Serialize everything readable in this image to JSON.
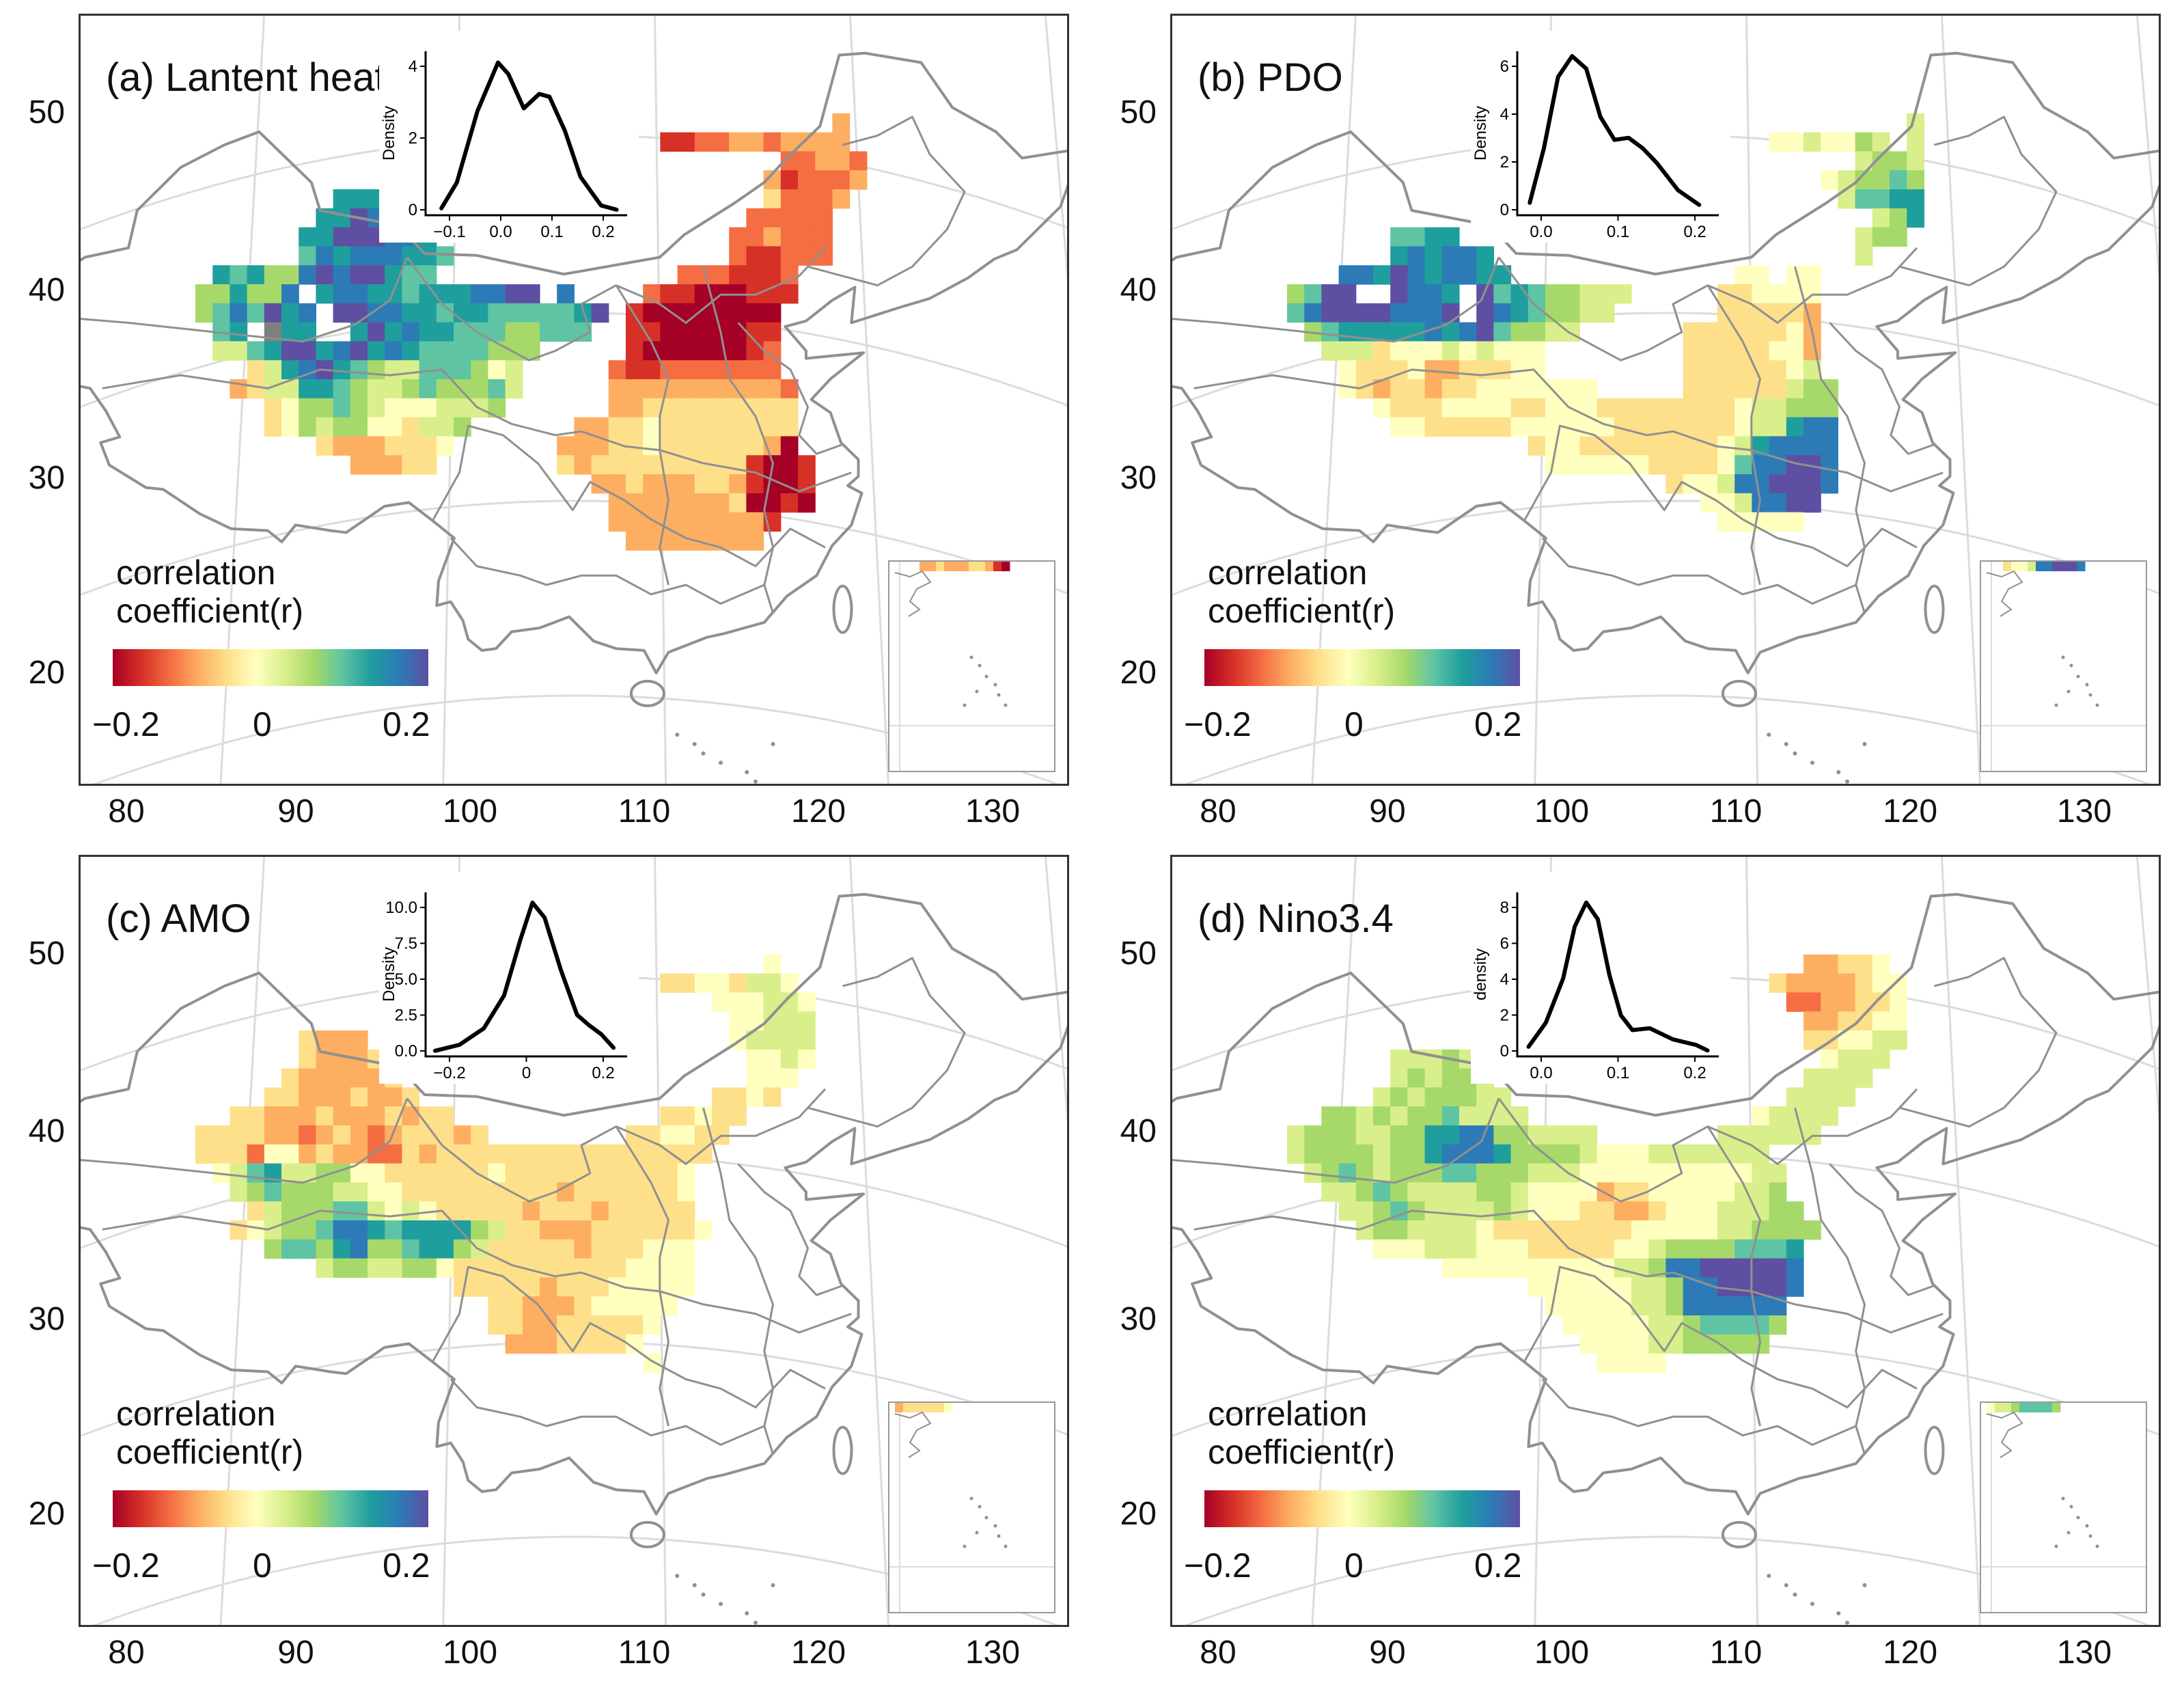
{
  "colors": {
    "scale": [
      "#a50026",
      "#d73027",
      "#f46d43",
      "#fdae61",
      "#fee08b",
      "#ffffbf",
      "#d9ef8b",
      "#a6d96a",
      "#5ec4a3",
      "#1f9e9e",
      "#2c7bb6",
      "#5e4fa2"
    ],
    "boundary": "#909090",
    "graticule": "#dcdcdc",
    "missing": "#7f7f7f"
  },
  "legend": {
    "title_line1": "correlation",
    "title_line2": "coefficient(r)",
    "min_label": "−0.2",
    "mid_label": "0",
    "max_label": "0.2",
    "range": [
      -0.25,
      0.25
    ]
  },
  "axes": {
    "lat_labels": [
      "50",
      "40",
      "30",
      "20"
    ],
    "lon_labels": [
      "80",
      "90",
      "100",
      "110",
      "120",
      "130"
    ]
  },
  "panels": [
    {
      "id": "a",
      "title": "(a) Lantent heat",
      "inset": {
        "ylabel": "Density",
        "yticks": [
          "0",
          "2",
          "4"
        ],
        "xticks": [
          "−0.1",
          "0.0",
          "0.1",
          "0.2"
        ]
      },
      "grid": [
        "......................................",
        ".....................................D",
        "...........................BBCCDDCDDDD",
        "..................................CCDDC",
        ".................................DBCCCD",
        "........JJJJ.....................ECCCD",
        ".......JJLKJJ...................CCCCC.",
        "......JJLLLKKJ.................CCDCCC.",
        "......IKJKKKJJI................CBBCCC.",
        ".JIJHHKLKLLJII..............CCCBBBC...",
        "HHJHHKNJKKJJIJJJKKLLMK....CBBAAABBB...",
        "HIKILJKNLLKKJJIJJIIIIIJL.BAAAAAAAA....",
        ".IJNXJJMMJLJKJJIIIHHIII..BBAAAAABB....",
        ".GGIJLLJKLJKJIIIIHHH.....BAAAAAABC....",
        "...EGJKLJIHGGIIIHFG.....CBBCCCCCCC....",
        "..DEGGJJIHGGHIHHHIG.....DDDDDDDDDDC...",
        "....EFHHIHGFFFGGGH......DDEEEEEEEEE...",
        "....EFHGHHFFEGGH......DDEEFEEEEEEEE...",
        ".......EDDDEEEF......DDDEEFEEEEEEDA...",
        ".........DDDEE.......EDEEEEEEEEEBAAB..",
        ".......................DDEDDDEEDBAAB..",
        "........................DDDDDDDEAABA..",
        "........................DDDDDDDDDB....",
        ".........................DDDDDDDD....."
      ]
    },
    {
      "id": "b",
      "title": "(b) PDO",
      "inset": {
        "ylabel": "Density",
        "yticks": [
          "0",
          "2",
          "4",
          "6"
        ],
        "xticks": [
          "0.0",
          "0.1",
          "0.2"
        ]
      },
      "grid": [
        "......................................",
        "....................................G.",
        "............................FFGFFHG.G.",
        ".................................GHHG.",
        "...............................FGHHIH.",
        "................................GIIJJ.",
        "..................................GHJ.",
        "......IIJJ.......................GHH..",
        "......JKJKKJ.....................G....",
        "...KKJLKJKKJJ.............FF.FF.......",
        "HILLMMLKKJMLIJIHHGGG.....EEFFFF.......",
        "IKLLLLKKKLMLKJIHHGG......EEEEED.......",
        ".HIJJJJJKJKLIHHGG......EEEEEEFD.......",
        "..GGGEFFFGFGFFF........EEEEEFFD.......",
        "...FEEEFDDEEEFF........EEEEEEFG.......",
        "...FEDEEDEEFFFFFFF.....EEEEEEGHH......",
        ".....FEEEFFFFEEFFFEEEEEEEEFGGHHH......",
        "......FFEEEEEFFFFFFEEEEEEEFGGJKK......",
        "..............EFFEEEEEEEEFGJKKKK......",
        "...............FFFFFFEEEEFIKKLLK......",
        "......................EFFGKKLLLK......",
        "........................FFGKKLL.......",
        ".........................FFFFF........",
        "......................................"
      ]
    },
    {
      "id": "c",
      "title": "(c) AMO",
      "inset": {
        "ylabel": "Density",
        "yticks": [
          "0.0",
          "2.5",
          "5.0",
          "7.5",
          "10.0"
        ],
        "xticks": [
          "−0.2",
          "0",
          "0.2"
        ]
      },
      "grid": [
        "......................................",
        ".................................F....",
        "...........................EEFFEGGF...",
        "..............................FFFGGF..",
        "...............................FFGGG..",
        "......EDDD.....................FGGGG..",
        "......EDDDE.....................FFGF..",
        ".....EDDDDDE....................FFF...",
        "....EEDDDEDDE.................EEFE....",
        "..EEDDDEDDDEDEE............EEFEE......",
        "EEEEDDCDEDCDEEEDE........EEFFEE.......",
        "EEECFFDEDDCCEDEEEEEEEEEEEEEEEE........",
        ".FGIJGGHHFFEEEEEEFEEEEEEEEEEF.........",
        "..GHIHHHGGFFEEEEEEEEEDEEEEEEF.........",
        "...EGHHHIIGFGFEEEEEDEEEDEEEEE.........",
        "..EFGHHIKKJIJJJJHGEEDDDEEEEEEF........",
        "....HIIHJKHHIJJHGEEEEEDEEEFFF.........",
        ".......GHHGGHHFEEEEEEEEEEFFFF.........",
        "...............EEEEEDEEEFFFFF.........",
        ".................EEDDDEFFFFF..........",
        ".................EEDDEEEEEF...........",
        "..................DDDEEEEF............",
        "..........................F...........",
        "......................................"
      ]
    },
    {
      "id": "d",
      "title": "(d) Nino3.4",
      "inset": {
        "ylabel": "density",
        "yticks": [
          "0",
          "2",
          "4",
          "6",
          "8"
        ],
        "xticks": [
          "0.0",
          "0.1",
          "0.2"
        ]
      },
      "grid": [
        "......................................",
        "..............................DDEEF...",
        "............................EDDDDEFF..",
        ".............................CCDDEEF..",
        "..............................DDEEFF..",
        "..............................EEFFGG..",
        "......GGGHG....................FGGG...",
        "......GHGHHG..................GGGG....",
        ".....GHGHHHGG................GGGG.....",
        "..HHGHGHHIGGGG.............FGGGG......",
        "GHHHGGHHJJKKHHGGGG.......GGGGGG.......",
        "GHHHHGHHJKKKJHHHHGFFFGGGGGGG..........",
        ".GHIHGHHHIIHHHGGGFFFFFFFFFFGG.........",
        "..GGHIHGGGGHHGFFFFDEEFFFFFGGH.........",
        "...GGHIHGGGGHGFFFEEDDEFFFGGGHH........",
        "....GHHGGGGFEEEEEEEEFFFFFGGHHHH.......",
        ".....FFFGGGFFFEEEEEFFGHHHHIIIJ........",
        ".........FFFFFFFFFFGGHKKLLLLLK........",
        "..............FFFFFFGGHKKLLLLK........",
        "...............FFFFFGGHKKKKKK.........",
        "................FFFFFGGHIIIIH.........",
        ".................FFFFGGHHHHH..........",
        "..................FFFF................",
        "......................................"
      ]
    }
  ]
}
